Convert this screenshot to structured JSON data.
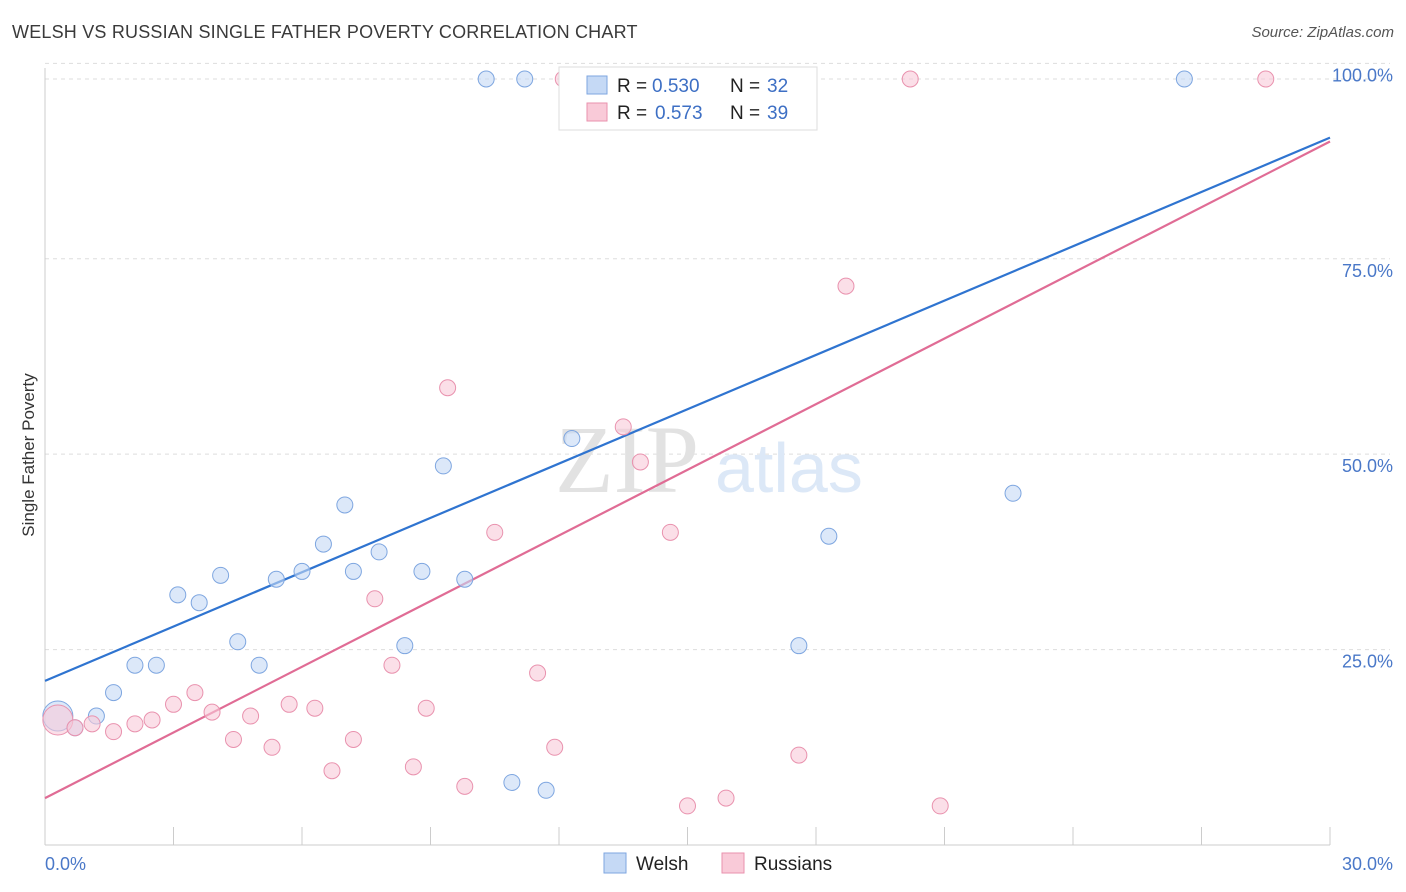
{
  "title": "WELSH VS RUSSIAN SINGLE FATHER POVERTY CORRELATION CHART",
  "source": "Source: ZipAtlas.com",
  "watermark": {
    "zip": "ZIP",
    "atlas": "atlas"
  },
  "colors": {
    "welsh_fill": "#c5d9f5",
    "welsh_stroke": "#7ea6e0",
    "welsh_line": "#2f74d0",
    "russian_fill": "#f9cad8",
    "russian_stroke": "#e992ae",
    "russian_line": "#e06c95",
    "tick_text": "#4a78c8",
    "grid": "#dddddd"
  },
  "legend": {
    "welsh": {
      "r_label": "R =",
      "r_value": "0.530",
      "n_label": "N =",
      "n_value": "32"
    },
    "russian": {
      "r_label": "R =",
      "r_value": "0.573",
      "n_label": "N =",
      "n_value": "39"
    }
  },
  "chart_data": {
    "type": "scatter",
    "title": "WELSH VS RUSSIAN SINGLE FATHER POVERTY CORRELATION CHART",
    "xlabel": "",
    "ylabel": "Single Father Poverty",
    "xlim": [
      0,
      30
    ],
    "ylim": [
      0,
      100
    ],
    "x_tick_labels": [
      "0.0%",
      "30.0%"
    ],
    "y_tick_labels": [
      "25.0%",
      "50.0%",
      "75.0%",
      "100.0%"
    ],
    "y_ticks": [
      25,
      50,
      75,
      100
    ],
    "grid": true,
    "legend_position": "top-center",
    "series": [
      {
        "name": "Welsh",
        "color": "#7ea6e0",
        "trend": {
          "x": [
            0,
            30
          ],
          "y": [
            21.0,
            90.5
          ]
        },
        "points": [
          {
            "x": 0.3,
            "y": 16.5,
            "big": true
          },
          {
            "x": 0.7,
            "y": 15.0
          },
          {
            "x": 1.2,
            "y": 16.5
          },
          {
            "x": 1.6,
            "y": 19.5
          },
          {
            "x": 2.1,
            "y": 23.0
          },
          {
            "x": 2.6,
            "y": 23.0
          },
          {
            "x": 3.1,
            "y": 32.0
          },
          {
            "x": 3.6,
            "y": 31.0
          },
          {
            "x": 4.1,
            "y": 34.5
          },
          {
            "x": 4.5,
            "y": 26.0
          },
          {
            "x": 5.0,
            "y": 23.0
          },
          {
            "x": 5.4,
            "y": 34.0
          },
          {
            "x": 6.0,
            "y": 35.0
          },
          {
            "x": 6.5,
            "y": 38.5
          },
          {
            "x": 7.0,
            "y": 43.5
          },
          {
            "x": 7.2,
            "y": 35.0
          },
          {
            "x": 7.8,
            "y": 37.5
          },
          {
            "x": 8.4,
            "y": 25.5
          },
          {
            "x": 8.8,
            "y": 35.0
          },
          {
            "x": 9.3,
            "y": 48.5
          },
          {
            "x": 9.8,
            "y": 34.0
          },
          {
            "x": 10.3,
            "y": 98.0
          },
          {
            "x": 11.2,
            "y": 98.0
          },
          {
            "x": 10.9,
            "y": 8.0
          },
          {
            "x": 11.7,
            "y": 7.0
          },
          {
            "x": 12.3,
            "y": 52.0
          },
          {
            "x": 12.5,
            "y": 98.0
          },
          {
            "x": 14.0,
            "y": 98.0
          },
          {
            "x": 17.6,
            "y": 25.5
          },
          {
            "x": 18.3,
            "y": 39.5
          },
          {
            "x": 22.6,
            "y": 45.0
          },
          {
            "x": 26.6,
            "y": 98.0
          }
        ]
      },
      {
        "name": "Russians",
        "color": "#e992ae",
        "trend": {
          "x": [
            0,
            30
          ],
          "y": [
            6.0,
            90.0
          ]
        },
        "points": [
          {
            "x": 0.3,
            "y": 16.0,
            "big": true
          },
          {
            "x": 0.7,
            "y": 15.0
          },
          {
            "x": 1.1,
            "y": 15.5
          },
          {
            "x": 1.6,
            "y": 14.5
          },
          {
            "x": 2.1,
            "y": 15.5
          },
          {
            "x": 2.5,
            "y": 16.0
          },
          {
            "x": 3.0,
            "y": 18.0
          },
          {
            "x": 3.5,
            "y": 19.5
          },
          {
            "x": 3.9,
            "y": 17.0
          },
          {
            "x": 4.4,
            "y": 13.5
          },
          {
            "x": 4.8,
            "y": 16.5
          },
          {
            "x": 5.3,
            "y": 12.5
          },
          {
            "x": 5.7,
            "y": 18.0
          },
          {
            "x": 6.3,
            "y": 17.5
          },
          {
            "x": 6.7,
            "y": 9.5
          },
          {
            "x": 7.2,
            "y": 13.5
          },
          {
            "x": 7.7,
            "y": 31.5
          },
          {
            "x": 8.1,
            "y": 23.0
          },
          {
            "x": 8.6,
            "y": 10.0
          },
          {
            "x": 8.9,
            "y": 17.5
          },
          {
            "x": 9.4,
            "y": 58.5
          },
          {
            "x": 9.8,
            "y": 7.5
          },
          {
            "x": 10.5,
            "y": 40.0
          },
          {
            "x": 11.5,
            "y": 22.0
          },
          {
            "x": 11.9,
            "y": 12.5
          },
          {
            "x": 12.1,
            "y": 98.0
          },
          {
            "x": 12.4,
            "y": 98.0
          },
          {
            "x": 13.5,
            "y": 53.5
          },
          {
            "x": 13.9,
            "y": 49.0
          },
          {
            "x": 14.6,
            "y": 40.0
          },
          {
            "x": 15.0,
            "y": 5.0
          },
          {
            "x": 15.5,
            "y": 98.0
          },
          {
            "x": 15.9,
            "y": 6.0
          },
          {
            "x": 17.6,
            "y": 11.5
          },
          {
            "x": 18.7,
            "y": 71.5
          },
          {
            "x": 20.2,
            "y": 98.0
          },
          {
            "x": 20.9,
            "y": 5.0
          },
          {
            "x": 28.5,
            "y": 98.0
          },
          {
            "x": 17.0,
            "y": 98.0
          }
        ]
      }
    ]
  },
  "bottom_legend": {
    "welsh": "Welsh",
    "russians": "Russians"
  }
}
